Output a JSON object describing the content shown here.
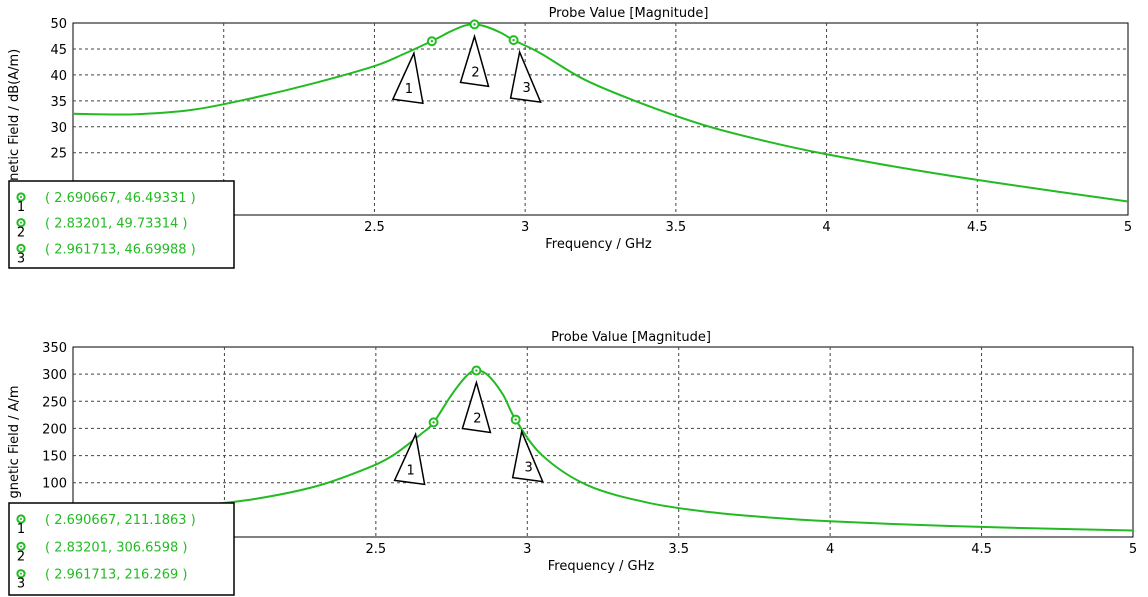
{
  "charts": [
    {
      "title": "Probe Value [Magnitude]",
      "xlabel": "Frequency / GHz",
      "ylabel": "gnetic Field / dB(A/m)",
      "line_color": "#22bb22"
    },
    {
      "title": "Probe Value [Magnitude]",
      "xlabel": "Frequency / GHz",
      "ylabel": "gnetic Field / A/m",
      "line_color": "#22bb22"
    }
  ],
  "chart_data": [
    {
      "type": "line",
      "title": "Probe Value [Magnitude]",
      "xlabel": "Frequency / GHz",
      "ylabel": "gnetic Field / dB(A/m)",
      "xlim": [
        1.5,
        5
      ],
      "ylim": [
        13,
        50
      ],
      "xticks": [
        2,
        2.5,
        3,
        3.5,
        4,
        4.5,
        5
      ],
      "yticks": [
        25,
        30,
        35,
        40,
        45,
        50
      ],
      "grid": true,
      "series": [
        {
          "x": [
            1.5,
            1.7,
            1.9,
            2.1,
            2.3,
            2.5,
            2.6,
            2.7,
            2.75,
            2.8,
            2.83201,
            2.87,
            2.92,
            2.961713,
            3.05,
            3.2,
            3.4,
            3.6,
            3.8,
            4.0,
            4.3,
            4.6,
            5.0
          ],
          "y": [
            32.5,
            32.4,
            33.3,
            35.6,
            38.4,
            41.7,
            44.1,
            46.8,
            48.3,
            49.5,
            49.73,
            49.3,
            48.1,
            46.7,
            44.2,
            39.0,
            34.2,
            30.2,
            27.2,
            24.7,
            21.6,
            18.9,
            15.6
          ]
        }
      ],
      "markers": [
        {
          "id": "1",
          "x": 2.690667,
          "y": 46.49331,
          "label": "( 2.690667, 46.49331 )"
        },
        {
          "id": "2",
          "x": 2.83201,
          "y": 49.73314,
          "label": "( 2.83201, 49.73314 )"
        },
        {
          "id": "3",
          "x": 2.961713,
          "y": 46.69988,
          "label": "( 2.961713, 46.69988 )"
        }
      ]
    },
    {
      "type": "line",
      "title": "Probe Value [Magnitude]",
      "xlabel": "Frequency / GHz",
      "ylabel": "gnetic Field / A/m",
      "xlim": [
        1.5,
        5
      ],
      "ylim": [
        0,
        350
      ],
      "xticks": [
        2,
        2.5,
        3,
        3.5,
        4,
        4.5,
        5
      ],
      "yticks": [
        100,
        150,
        200,
        250,
        300,
        350
      ],
      "grid": true,
      "series": [
        {
          "x": [
            1.5,
            1.7,
            1.9,
            2.1,
            2.3,
            2.45,
            2.55,
            2.65,
            2.690667,
            2.75,
            2.8,
            2.83201,
            2.87,
            2.92,
            2.961713,
            3.05,
            3.2,
            3.4,
            3.6,
            3.8,
            4.0,
            4.3,
            4.6,
            5.0
          ],
          "y": [
            45,
            49,
            57,
            70,
            93,
            122,
            148,
            190,
            211,
            262,
            297,
            307,
            298,
            262,
            216,
            150,
            95,
            63,
            46,
            36,
            29,
            22,
            17,
            12
          ]
        }
      ],
      "markers": [
        {
          "id": "1",
          "x": 2.690667,
          "y": 211.1863,
          "label": "( 2.690667, 211.1863 )"
        },
        {
          "id": "2",
          "x": 2.83201,
          "y": 306.6598,
          "label": "( 2.83201, 306.6598 )"
        },
        {
          "id": "3",
          "x": 2.961713,
          "y": 216.269,
          "label": "( 2.961713, 216.269 )"
        }
      ]
    }
  ]
}
